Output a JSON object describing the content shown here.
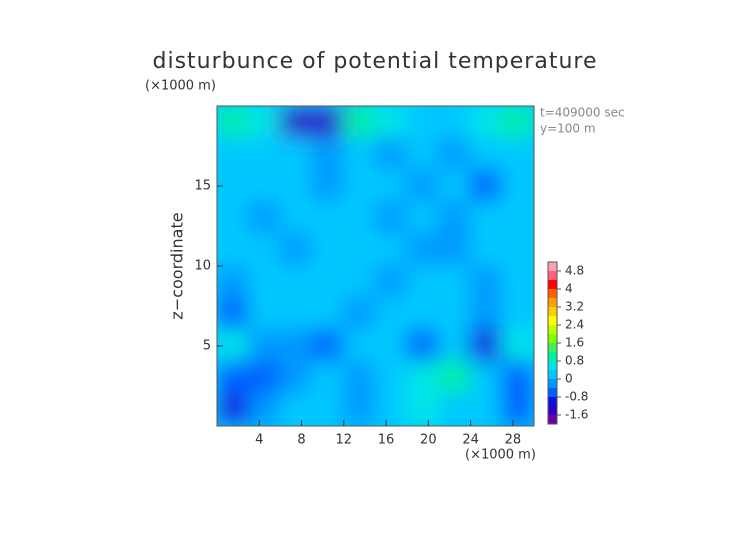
{
  "chart_data": {
    "type": "contour",
    "title": "disturbunce of potential temperature",
    "y_unit": "(×1000 m)",
    "x_unit": "(×1000 m)",
    "ylabel": "z−coordinate",
    "annotations": [
      "t=409000 sec",
      "y=100 m"
    ],
    "xlim": [
      0,
      30
    ],
    "ylim": [
      0,
      20
    ],
    "xticks": [
      4,
      8,
      12,
      16,
      20,
      24,
      28
    ],
    "yticks": [
      5,
      10,
      15
    ],
    "x": [
      1.5,
      4.5,
      7.5,
      10.5,
      13.5,
      16.5,
      19.5,
      22.5,
      25.5,
      28.5
    ],
    "y": [
      19,
      17,
      15,
      13,
      11,
      9,
      7,
      5,
      3,
      1
    ],
    "z": [
      [
        0.8,
        0.4,
        -1.6,
        -1.6,
        0.8,
        0.4,
        0.2,
        0.2,
        0.4,
        0.8
      ],
      [
        0.2,
        0,
        0,
        -0.2,
        0.2,
        -0.4,
        0,
        -0.4,
        0,
        0.2
      ],
      [
        0,
        0,
        0,
        -0.4,
        0,
        0,
        -0.4,
        0,
        -0.6,
        0
      ],
      [
        0,
        -0.4,
        0,
        0,
        0,
        -0.4,
        0,
        -0.4,
        0,
        0
      ],
      [
        0,
        0,
        -0.4,
        0,
        0,
        0,
        -0.2,
        -0.4,
        0,
        0
      ],
      [
        -0.4,
        0,
        0,
        0,
        0,
        -0.4,
        0,
        0,
        -0.4,
        0
      ],
      [
        -0.8,
        0,
        0,
        0,
        -0.4,
        0,
        0,
        0,
        -0.4,
        0.2
      ],
      [
        0.6,
        -0.4,
        -0.4,
        -0.8,
        0,
        0,
        -0.8,
        0,
        -1.2,
        0.4
      ],
      [
        -0.8,
        -0.8,
        -0.4,
        0,
        -0.4,
        0.2,
        0.4,
        0.8,
        0,
        -0.8
      ],
      [
        -1,
        -0.4,
        0,
        0.2,
        -0.4,
        0,
        0.4,
        0.2,
        0,
        -0.8
      ]
    ],
    "levels": [
      -2,
      -1.6,
      -1.2,
      -0.8,
      -0.4,
      0,
      0.4,
      0.8,
      1.2,
      1.6,
      2,
      2.4,
      2.8,
      3.2,
      3.6,
      4,
      4.4,
      4.8,
      5.2
    ],
    "colors": [
      "#6a00a8",
      "#2a00c8",
      "#1010e0",
      "#0060ff",
      "#0098ff",
      "#00c8ff",
      "#00e6e6",
      "#00f0a0",
      "#40f060",
      "#80ff00",
      "#c0ff00",
      "#ffff00",
      "#ffd000",
      "#ffa000",
      "#ff6000",
      "#ff0000",
      "#ff6080",
      "#ffa0b0"
    ],
    "colorbar_ticks": [
      -1.6,
      -0.8,
      0,
      0.8,
      1.6,
      2.4,
      3.2,
      4,
      4.8
    ]
  }
}
